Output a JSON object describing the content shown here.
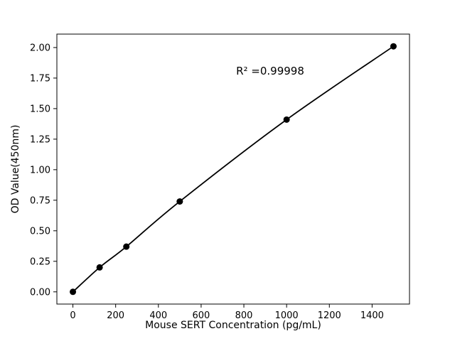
{
  "figure": {
    "background": "#ffffff",
    "foreground": "#000000"
  },
  "chart_data": {
    "type": "line",
    "x": [
      0,
      125,
      250,
      500,
      1000,
      1500
    ],
    "y": [
      0.0,
      0.2,
      0.37,
      0.74,
      1.41,
      2.01
    ],
    "title": "",
    "xlabel": "Mouse SERT Concentration (pg/mL)",
    "ylabel": "OD Value(450nm)",
    "xlim": [
      -75,
      1575
    ],
    "ylim": [
      -0.1,
      2.11
    ],
    "xticks": [
      0,
      200,
      400,
      600,
      800,
      1000,
      1200,
      1400
    ],
    "yticks": [
      0.0,
      0.25,
      0.5,
      0.75,
      1.0,
      1.25,
      1.5,
      1.75,
      2.0
    ],
    "grid": false,
    "legend_position": "none",
    "line_color": "#000000",
    "marker": "circle",
    "marker_color": "#000000",
    "annotation": {
      "text": "R² =0.99998",
      "x": 900,
      "y": 1.81
    }
  }
}
